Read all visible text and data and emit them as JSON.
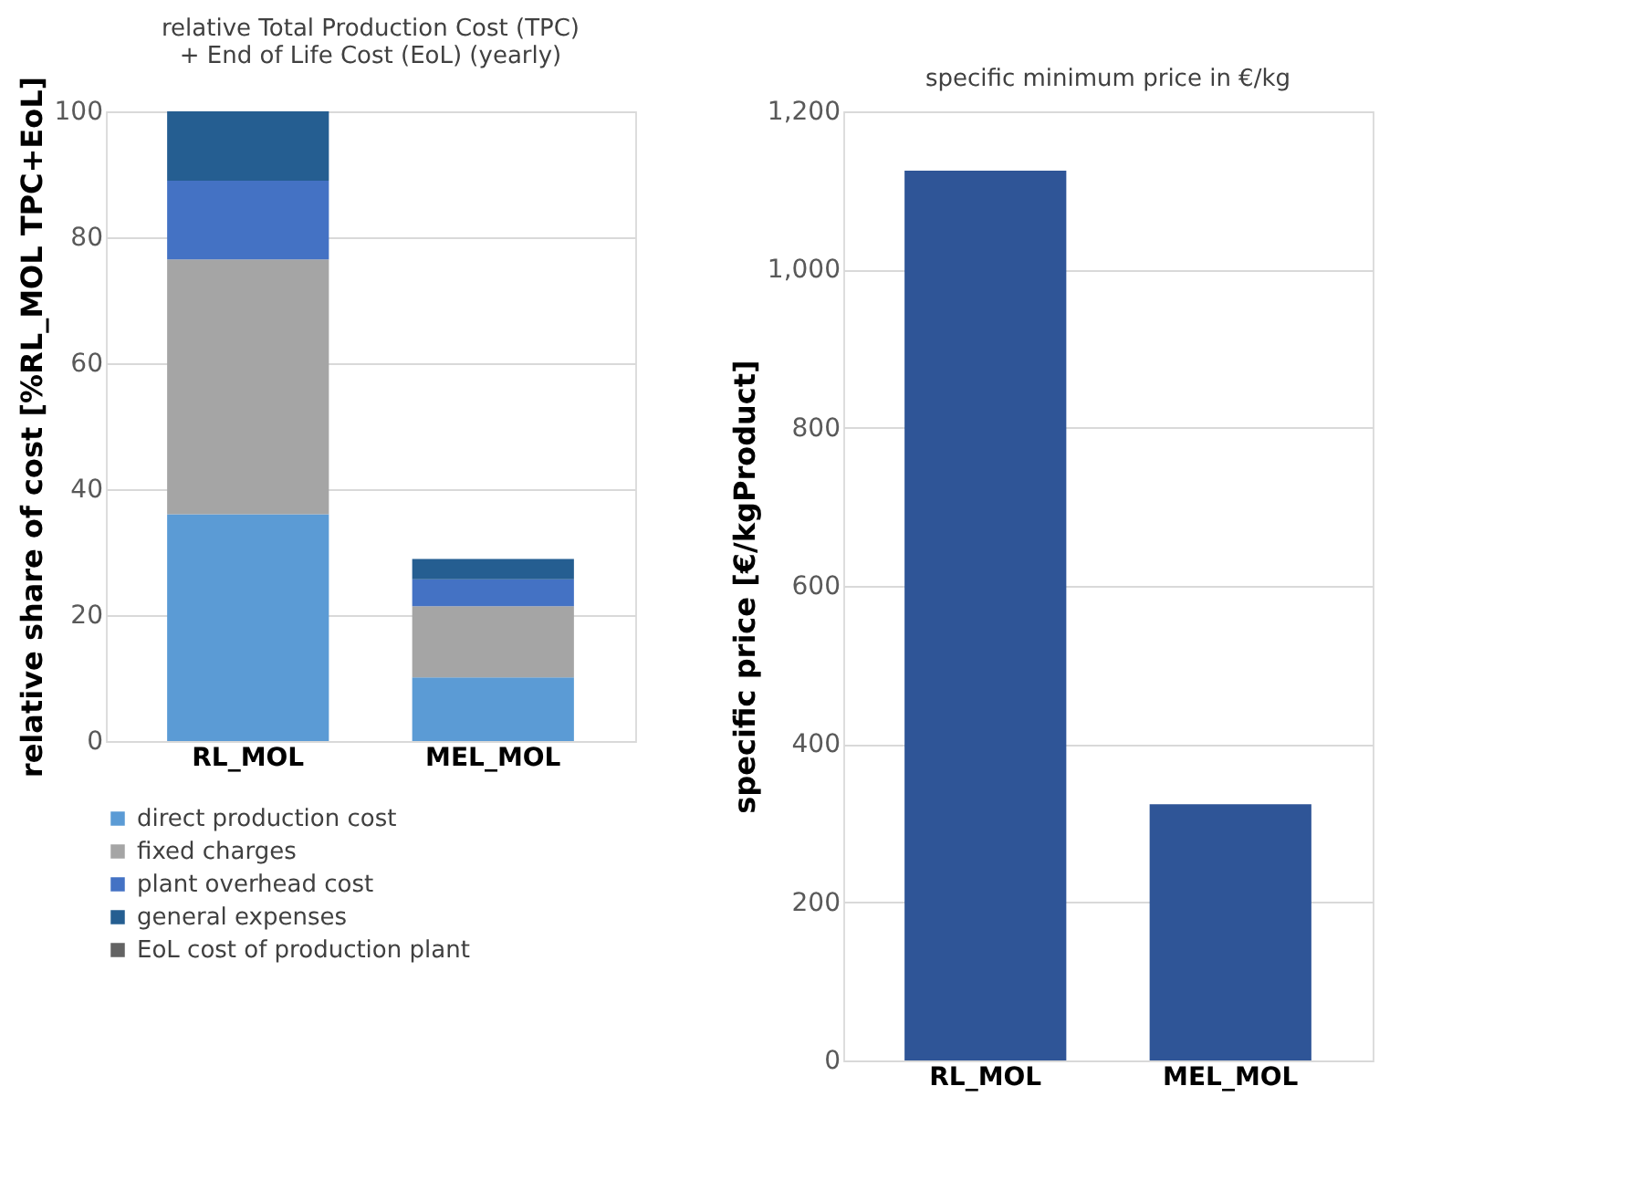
{
  "chart_data": [
    {
      "type": "bar",
      "stacked": true,
      "title": [
        "relative Total Production Cost (TPC)",
        "+ End of Life Cost (EoL) (yearly)"
      ],
      "ylabel": "relative share of cost [%RL_MOL TPC+EoL]",
      "categories": [
        "RL_MOL",
        "MEL_MOL"
      ],
      "series": [
        {
          "name": "direct production cost",
          "color": "#5b9bd5",
          "values": [
            36.0,
            10.1
          ]
        },
        {
          "name": "fixed charges",
          "color": "#a5a5a5",
          "values": [
            40.5,
            11.3
          ]
        },
        {
          "name": "plant overhead cost",
          "color": "#4472c4",
          "values": [
            12.5,
            4.3
          ]
        },
        {
          "name": "general expenses",
          "color": "#255e91",
          "values": [
            11.0,
            3.2
          ]
        },
        {
          "name": "EoL cost of production plant",
          "color": "#636363",
          "values": [
            0,
            0
          ]
        }
      ],
      "ylim": [
        0,
        100
      ],
      "yticks": [
        0,
        20,
        40,
        60,
        80,
        100
      ],
      "grid": "y",
      "legend": "bottom"
    },
    {
      "type": "bar",
      "title": "specific minimum price in €/kg",
      "ylabel": "specific price [€/kgProduct]",
      "categories": [
        "RL_MOL",
        "MEL_MOL"
      ],
      "series": [
        {
          "color": "#2f5597",
          "values": [
            1125,
            324
          ]
        }
      ],
      "ylim": [
        0,
        1200
      ],
      "yticks": [
        0,
        {
          "value": 200,
          "label": "200"
        },
        400,
        600,
        800,
        {
          "value": 1000,
          "label": "1,000"
        },
        {
          "value": 1200,
          "label": "1,200"
        }
      ],
      "grid": "y",
      "legend": false
    }
  ]
}
